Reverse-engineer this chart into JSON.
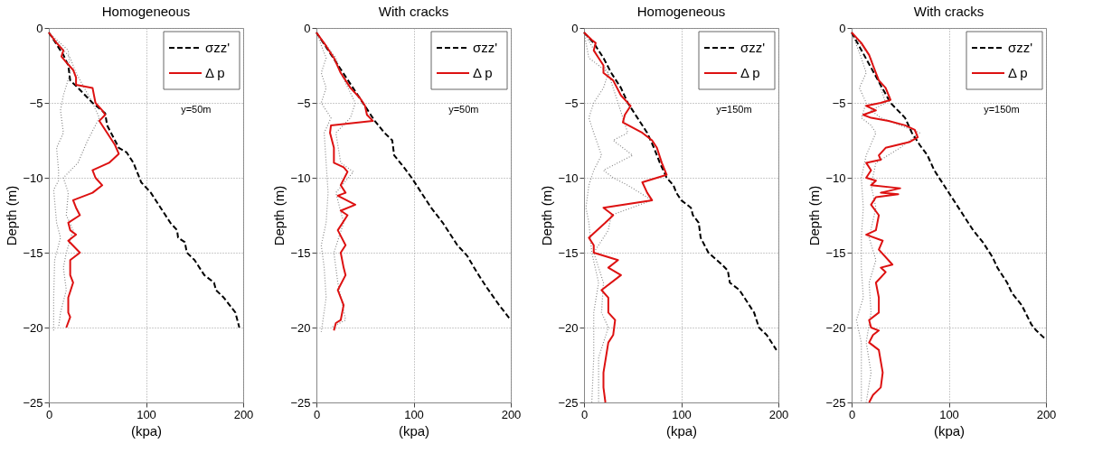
{
  "chart_data": [
    {
      "type": "line",
      "title": "Homogeneous",
      "xlabel": "(kpa)",
      "ylabel": "Depth (m)",
      "xlim": [
        0,
        200
      ],
      "xticks": [
        0,
        100,
        200
      ],
      "ylim": [
        -25,
        0
      ],
      "yticks": [
        -25,
        -20,
        -15,
        -10,
        -5,
        0
      ],
      "grid": true,
      "legend": "top right",
      "annotations": [
        "y=50m"
      ],
      "series": [
        {
          "color": "#888888",
          "line_style": "dotted",
          "x": [
            0,
            20,
            22,
            15,
            12,
            15,
            8,
            10,
            10,
            5,
            8,
            12,
            6,
            5,
            5
          ],
          "values": [
            -0.3,
            -1.5,
            -3,
            -4.5,
            -5.5,
            -7,
            -8,
            -9.5,
            -10.2,
            -10.8,
            -13,
            -14,
            -15.5,
            -18,
            -20.2
          ]
        },
        {
          "color": "#888888",
          "line_style": "dotted",
          "x": [
            0,
            22,
            28,
            45,
            52,
            40,
            30,
            15,
            20,
            18,
            25,
            18,
            15,
            18,
            12,
            10
          ],
          "values": [
            -0.3,
            -2,
            -3,
            -5,
            -6,
            -7.5,
            -9,
            -10,
            -11,
            -12.5,
            -13.5,
            -15,
            -16,
            -17.5,
            -19,
            -20
          ]
        },
        {
          "name": "σzz'",
          "color": "#000000",
          "line_style": "dashed",
          "x": [
            0,
            5,
            15,
            20,
            22,
            30,
            45,
            58,
            60,
            68,
            72,
            80,
            87,
            92,
            95,
            105,
            115,
            125,
            132,
            133,
            140,
            142,
            150,
            160,
            170,
            172,
            180,
            192,
            194,
            196
          ],
          "values": [
            -0.3,
            -0.8,
            -1.8,
            -2.5,
            -3.5,
            -4,
            -5,
            -5.7,
            -6.5,
            -7.5,
            -8,
            -8.3,
            -9,
            -9.8,
            -10.3,
            -11,
            -12,
            -13,
            -13.5,
            -14,
            -14.3,
            -15,
            -15.5,
            -16.5,
            -17,
            -17.5,
            -18,
            -19,
            -19.5,
            -20
          ]
        },
        {
          "name": "Δ p",
          "color": "#dd1111",
          "line_style": "solid",
          "x": [
            0,
            8,
            15,
            13,
            18,
            25,
            28,
            28,
            45,
            48,
            55,
            58,
            52,
            60,
            68,
            72,
            62,
            45,
            48,
            55,
            45,
            25,
            28,
            32,
            20,
            22,
            28,
            20,
            32,
            22,
            22,
            25,
            20,
            20,
            22,
            18
          ],
          "values": [
            -0.3,
            -1,
            -1.5,
            -1.9,
            -2.3,
            -2.8,
            -3.3,
            -3.8,
            -4,
            -5,
            -5.5,
            -5.8,
            -6.2,
            -7,
            -7.8,
            -8.4,
            -9,
            -9.5,
            -10,
            -10.5,
            -11,
            -11.5,
            -12,
            -12.5,
            -13,
            -13.5,
            -13.8,
            -14.2,
            -15,
            -15.5,
            -16.5,
            -17,
            -18,
            -19,
            -19.3,
            -20
          ]
        }
      ]
    },
    {
      "type": "line",
      "title": "With cracks",
      "xlabel": "(kpa)",
      "ylabel": "Depth (m)",
      "xlim": [
        0,
        200
      ],
      "xticks": [
        0,
        100,
        200
      ],
      "ylim": [
        -25,
        0
      ],
      "yticks": [
        -25,
        -20,
        -15,
        -10,
        -5,
        0
      ],
      "grid": true,
      "legend": "top right",
      "annotations": [
        "y=50m"
      ],
      "series": [
        {
          "color": "#888888",
          "line_style": "dotted",
          "x": [
            0,
            10,
            5,
            10,
            5,
            15,
            8,
            10,
            12,
            10,
            5,
            8,
            10,
            5
          ],
          "values": [
            -0.3,
            -2,
            -3,
            -4,
            -5,
            -6,
            -7,
            -9,
            -11,
            -13,
            -14.5,
            -16,
            -18,
            -20.3
          ]
        },
        {
          "color": "#888888",
          "line_style": "dotted",
          "x": [
            0,
            20,
            25,
            40,
            35,
            20,
            25,
            38,
            20,
            28,
            18,
            22,
            30,
            15
          ],
          "values": [
            -0.3,
            -2,
            -3,
            -5,
            -6,
            -7,
            -9,
            -9.6,
            -11,
            -13,
            -15,
            -17,
            -19.5,
            -20
          ]
        },
        {
          "name": "σzz'",
          "color": "#000000",
          "line_style": "dashed",
          "x": [
            0,
            60,
            70,
            78,
            80,
            90,
            98,
            108,
            118,
            130,
            138,
            145,
            155,
            165,
            175,
            188,
            200
          ],
          "values": [
            -0.3,
            -6.2,
            -7,
            -7.5,
            -8.5,
            -9.3,
            -10,
            -11,
            -12,
            -13,
            -13.8,
            -14.5,
            -15.2,
            -16.3,
            -17.3,
            -18.5,
            -19.5
          ]
        },
        {
          "name": "Δ p",
          "color": "#dd1111",
          "line_style": "solid",
          "x": [
            0,
            10,
            18,
            25,
            35,
            45,
            50,
            52,
            58,
            15,
            14,
            18,
            18,
            28,
            32,
            25,
            30,
            22,
            40,
            25,
            32,
            22,
            30,
            25,
            28,
            30,
            22,
            28,
            25,
            20,
            18
          ],
          "values": [
            -0.3,
            -1.2,
            -2,
            -3,
            -4,
            -4.7,
            -5.2,
            -5.8,
            -6.2,
            -6.5,
            -7,
            -8,
            -9,
            -9.3,
            -9.6,
            -10.5,
            -11,
            -11.2,
            -11.8,
            -12.2,
            -12.5,
            -13.5,
            -14.5,
            -15,
            -16,
            -16.5,
            -17.5,
            -18.5,
            -19.5,
            -19.7,
            -20.2
          ]
        }
      ]
    },
    {
      "type": "line",
      "title": "Homogeneous",
      "xlabel": "(kpa)",
      "ylabel": "Depth (m)",
      "xlim": [
        0,
        200
      ],
      "xticks": [
        0,
        100,
        200
      ],
      "ylim": [
        -25,
        0
      ],
      "yticks": [
        -25,
        -20,
        -15,
        -10,
        -5,
        0
      ],
      "grid": true,
      "legend": "top right",
      "annotations": [
        "y=150m"
      ],
      "series": [
        {
          "color": "#888888",
          "line_style": "dotted",
          "x": [
            0,
            5,
            25,
            20,
            10,
            5,
            10,
            18,
            10,
            5,
            2,
            5,
            8,
            15,
            10,
            10,
            8
          ],
          "values": [
            -0.3,
            -2,
            -3,
            -4,
            -5,
            -6,
            -7,
            -8.5,
            -9.5,
            -10.5,
            -12,
            -13,
            -15,
            -17,
            -19,
            -22,
            -25
          ]
        },
        {
          "color": "#888888",
          "line_style": "dotted",
          "x": [
            0,
            15,
            25,
            40,
            45,
            30,
            50,
            20,
            30,
            45,
            70,
            28,
            25,
            10,
            20,
            18,
            25,
            15,
            15
          ],
          "values": [
            -0.3,
            -2,
            -3,
            -6,
            -7,
            -7.5,
            -8.5,
            -9.5,
            -10,
            -10.5,
            -11.5,
            -12.5,
            -13.5,
            -15,
            -17,
            -19,
            -20,
            -22,
            -25
          ]
        },
        {
          "name": "σzz'",
          "color": "#000000",
          "line_style": "dashed",
          "x": [
            0,
            10,
            20,
            28,
            38,
            45,
            55,
            65,
            72,
            78,
            85,
            92,
            95,
            100,
            110,
            112,
            118,
            120,
            128,
            142,
            148,
            150,
            160,
            170,
            175,
            180,
            188,
            198
          ],
          "values": [
            -0.3,
            -1,
            -2,
            -3,
            -4,
            -5,
            -6,
            -7,
            -8,
            -9,
            -10,
            -10.5,
            -11,
            -11.5,
            -12,
            -12.5,
            -13,
            -14,
            -15,
            -15.8,
            -16.2,
            -17,
            -17.5,
            -18.5,
            -19,
            -20,
            -20.5,
            -21.5
          ]
        },
        {
          "name": "Δ p",
          "color": "#dd1111",
          "line_style": "solid",
          "x": [
            0,
            8,
            12,
            10,
            15,
            20,
            20,
            30,
            38,
            48,
            42,
            40,
            60,
            70,
            75,
            80,
            85,
            60,
            65,
            70,
            20,
            30,
            22,
            5,
            10,
            10,
            35,
            25,
            38,
            18,
            25,
            25,
            32,
            30,
            25,
            20,
            20,
            22
          ],
          "values": [
            -0.3,
            -0.8,
            -1,
            -1.5,
            -2,
            -2.5,
            -3,
            -3.5,
            -4.5,
            -5.2,
            -5.8,
            -6.3,
            -7,
            -7.5,
            -8,
            -9,
            -9.8,
            -10.3,
            -11,
            -11.5,
            -12,
            -12.5,
            -13,
            -14,
            -14.5,
            -15,
            -15.5,
            -16,
            -16.5,
            -17.5,
            -18,
            -19,
            -19.5,
            -20.5,
            -21,
            -23,
            -24,
            -25
          ]
        }
      ]
    },
    {
      "type": "line",
      "title": "With cracks",
      "xlabel": "(kpa)",
      "ylabel": "Depth (m)",
      "xlim": [
        0,
        200
      ],
      "xticks": [
        0,
        100,
        200
      ],
      "ylim": [
        -25,
        0
      ],
      "yticks": [
        -25,
        -20,
        -15,
        -10,
        -5,
        0
      ],
      "grid": true,
      "legend": "top right",
      "annotations": [
        "y=150m"
      ],
      "series": [
        {
          "color": "#888888",
          "line_style": "dotted",
          "x": [
            0,
            10,
            15,
            8,
            15,
            10,
            20,
            25,
            15,
            10,
            12,
            10,
            10,
            12,
            5,
            10,
            10,
            10
          ],
          "values": [
            -0.3,
            -2,
            -3,
            -4,
            -5,
            -6,
            -6.5,
            -7,
            -8.5,
            -10,
            -12,
            -14,
            -16,
            -18,
            -19.5,
            -21,
            -23,
            -25
          ]
        },
        {
          "color": "#888888",
          "line_style": "dotted",
          "x": [
            0,
            20,
            25,
            35,
            20,
            30,
            70,
            50,
            25,
            20,
            25,
            18,
            25,
            18,
            20,
            15,
            20,
            15
          ],
          "values": [
            -0.3,
            -2,
            -3,
            -5,
            -5.5,
            -6,
            -7,
            -8,
            -9,
            -10.5,
            -12,
            -14,
            -15.5,
            -17,
            -19,
            -21,
            -23,
            -25
          ]
        },
        {
          "name": "σzz'",
          "color": "#000000",
          "line_style": "dashed",
          "x": [
            0,
            40,
            55,
            62,
            70,
            78,
            85,
            95,
            105,
            115,
            125,
            135,
            145,
            150,
            160,
            165,
            175,
            185,
            190,
            200
          ],
          "values": [
            -0.3,
            -5,
            -6,
            -7,
            -7.8,
            -8.5,
            -9.5,
            -10.5,
            -11.5,
            -12.5,
            -13.5,
            -14.3,
            -15.3,
            -16,
            -17,
            -17.7,
            -18.5,
            -19.8,
            -20.2,
            -20.8
          ]
        },
        {
          "name": "Δ p",
          "color": "#dd1111",
          "line_style": "solid",
          "x": [
            0,
            10,
            18,
            22,
            28,
            35,
            40,
            30,
            15,
            25,
            12,
            20,
            38,
            55,
            65,
            68,
            60,
            35,
            28,
            30,
            15,
            20,
            15,
            25,
            20,
            50,
            30,
            48,
            25,
            20,
            28,
            25,
            15,
            32,
            28,
            42,
            30,
            35,
            25,
            28,
            28,
            18,
            20,
            28,
            22,
            18,
            28,
            32,
            30,
            22,
            18
          ],
          "values": [
            -0.3,
            -1,
            -1.8,
            -2.5,
            -3.5,
            -4,
            -4.8,
            -5,
            -5.2,
            -5.5,
            -5.8,
            -6,
            -6.2,
            -6.5,
            -6.8,
            -7.3,
            -7.6,
            -8,
            -8.5,
            -8.8,
            -9,
            -9.5,
            -10,
            -10.2,
            -10.5,
            -10.7,
            -11,
            -11.1,
            -11.3,
            -11.8,
            -12.5,
            -13.5,
            -13.8,
            -14.2,
            -14.8,
            -15.8,
            -16,
            -16.3,
            -17,
            -18,
            -19,
            -19.5,
            -20,
            -20.2,
            -20.5,
            -21,
            -21.5,
            -23,
            -24,
            -24.5,
            -25
          ]
        }
      ]
    }
  ]
}
